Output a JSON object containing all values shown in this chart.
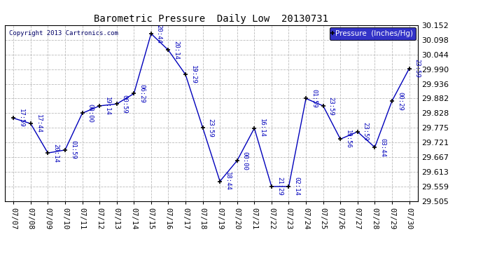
{
  "title": "Barometric Pressure  Daily Low  20130731",
  "copyright": "Copyright 2013 Cartronics.com",
  "legend_label": "Pressure  (Inches/Hg)",
  "dates": [
    "07/07",
    "07/08",
    "07/09",
    "07/10",
    "07/11",
    "07/12",
    "07/13",
    "07/14",
    "07/15",
    "07/16",
    "07/17",
    "07/18",
    "07/19",
    "07/20",
    "07/21",
    "07/22",
    "07/23",
    "07/24",
    "07/25",
    "07/26",
    "07/27",
    "07/28",
    "07/29",
    "07/30"
  ],
  "values": [
    29.81,
    29.79,
    29.682,
    29.693,
    29.828,
    29.855,
    29.862,
    29.9,
    30.12,
    30.06,
    29.97,
    29.775,
    29.578,
    29.654,
    29.773,
    29.559,
    29.559,
    29.882,
    29.855,
    29.733,
    29.76,
    29.703,
    29.873,
    29.992
  ],
  "time_labels": [
    "17:59",
    "17:44",
    "20:14",
    "01:59",
    "00:00",
    "19:14",
    "00:59",
    "06:29",
    "20:44",
    "20:14",
    "19:29",
    "23:59",
    "18:44",
    "00:00",
    "16:14",
    "21:29",
    "02:14",
    "01:59",
    "23:59",
    "19:56",
    "23:59",
    "03:44",
    "00:29",
    "23:59"
  ],
  "ylim_min": 29.505,
  "ylim_max": 30.152,
  "yticks": [
    29.505,
    29.559,
    29.613,
    29.667,
    29.721,
    29.775,
    29.828,
    29.882,
    29.936,
    29.99,
    30.044,
    30.098,
    30.152
  ],
  "line_color": "#0000bb",
  "marker_color": "#000000",
  "bg_color": "#ffffff",
  "grid_color": "#bbbbbb",
  "title_color": "#000000",
  "label_color": "#0000bb",
  "legend_bg": "#0000bb",
  "legend_text_color": "#ffffff"
}
